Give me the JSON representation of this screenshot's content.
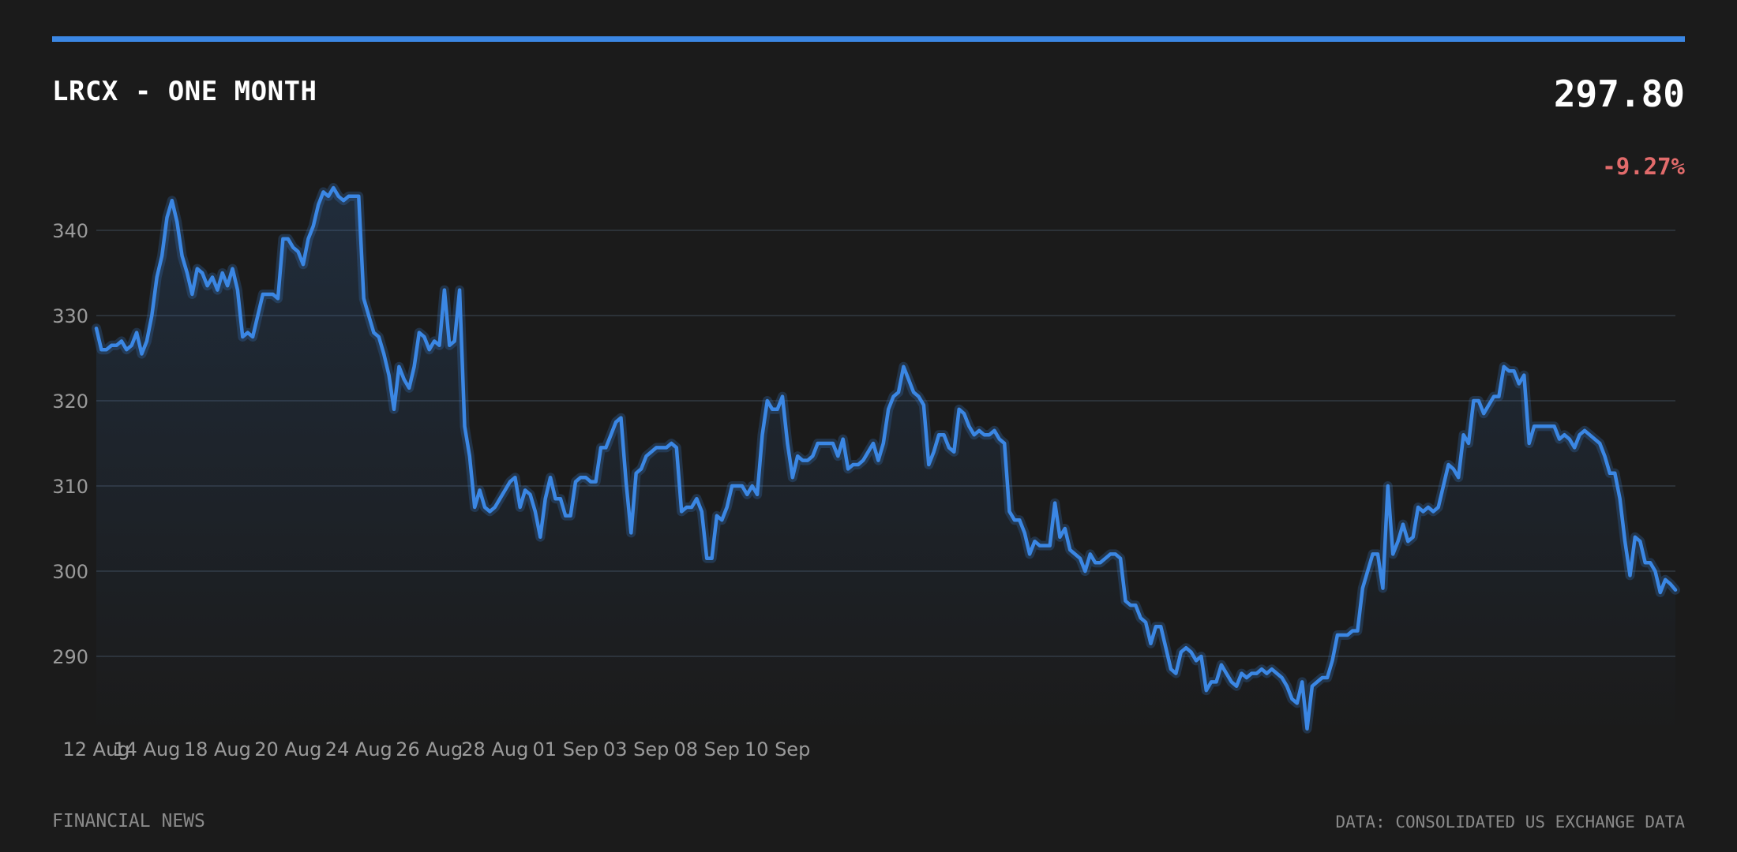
{
  "header": {
    "title": "LRCX - ONE MONTH",
    "price": "297.80",
    "change": "-9.27%"
  },
  "footer": {
    "source_left": "FINANCIAL NEWS",
    "source_right": "DATA: CONSOLIDATED US EXCHANGE DATA"
  },
  "colors": {
    "background": "#1b1b1b",
    "accent": "#3b87e4",
    "negative": "#e26b6b",
    "grid": "#333a42",
    "tick_text": "#9a9a9a"
  },
  "chart_data": {
    "type": "area",
    "title": "LRCX - ONE MONTH",
    "xlabel": "",
    "ylabel": "",
    "ylim": [
      281,
      350
    ],
    "yticks": [
      290,
      300,
      310,
      320,
      330,
      340
    ],
    "grid": true,
    "legend": "none",
    "x_tick_labels": [
      "12 Aug",
      "14 Aug",
      "18 Aug",
      "20 Aug",
      "24 Aug",
      "26 Aug",
      "28 Aug",
      "01 Sep",
      "03 Sep",
      "08 Sep",
      "10 Sep"
    ],
    "x_tick_positions": [
      0,
      10,
      24,
      38,
      52,
      66,
      79,
      93,
      107,
      121,
      135
    ],
    "series": [
      {
        "values": [
          328.5,
          326.0,
          326.0,
          326.5,
          326.5,
          327.0,
          326.0,
          326.5,
          328.0,
          325.5,
          327.0,
          330.0,
          334.5,
          337.0,
          341.5,
          343.5,
          341.0,
          337.0,
          335.0,
          332.5,
          335.5,
          335.0,
          333.5,
          334.5,
          333.0,
          335.0,
          333.5,
          335.5,
          333.0,
          327.5,
          328.0,
          327.5,
          330.0,
          332.5,
          332.5,
          332.5,
          332.0,
          339.0,
          339.0,
          338.0,
          337.5,
          336.0,
          339.0,
          340.5,
          343.0,
          344.5,
          344.0,
          345.0,
          344.0,
          343.5,
          344.0,
          344.0,
          344.0,
          332.0,
          330.0,
          328.0,
          327.5,
          325.5,
          323.0,
          319.0,
          324.0,
          322.5,
          321.5,
          324.0,
          328.0,
          327.5,
          326.0,
          327.0,
          326.5,
          333.0,
          326.5,
          327.0,
          333.0,
          317.0,
          313.5,
          307.5,
          309.5,
          307.5,
          307.0,
          307.5,
          308.5,
          309.5,
          310.5,
          311.0,
          307.5,
          309.5,
          309.0,
          307.0,
          304.0,
          308.5,
          311.0,
          308.5,
          308.5,
          306.5,
          306.5,
          310.5,
          311.0,
          311.0,
          310.5,
          310.5,
          314.5,
          314.5,
          316.0,
          317.5,
          318.0,
          310.5,
          304.5,
          311.5,
          312.0,
          313.5,
          314.0,
          314.5,
          314.5,
          314.5,
          315.0,
          314.5,
          307.0,
          307.5,
          307.5,
          308.5,
          307.0,
          301.5,
          301.5,
          306.5,
          306.0,
          307.5,
          310.0,
          310.0,
          310.0,
          309.0,
          310.0,
          309.0,
          316.0,
          320.0,
          319.0,
          319.0,
          320.5,
          315.0,
          311.0,
          313.5,
          313.0,
          313.0,
          313.5,
          315.0,
          315.0,
          315.0,
          315.0,
          313.5,
          315.5,
          312.0,
          312.5,
          312.5,
          313.0,
          314.0,
          315.0,
          313.0,
          315.0,
          319.0,
          320.5,
          321.0,
          324.0,
          322.5,
          321.0,
          320.5,
          319.5,
          312.5,
          314.0,
          316.0,
          316.0,
          314.5,
          314.0,
          319.0,
          318.5,
          317.0,
          316.0,
          316.5,
          316.0,
          316.0,
          316.5,
          315.5,
          315.0,
          307.0,
          306.0,
          306.0,
          304.5,
          302.0,
          303.5,
          303.0,
          303.0,
          303.0,
          308.0,
          304.0,
          305.0,
          302.5,
          302.0,
          301.5,
          300.0,
          302.0,
          301.0,
          301.0,
          301.5,
          302.0,
          302.0,
          301.5,
          296.5,
          296.0,
          296.0,
          294.5,
          294.0,
          291.5,
          293.5,
          293.5,
          291.0,
          288.5,
          288.0,
          290.5,
          291.0,
          290.5,
          289.5,
          290.0,
          286.0,
          287.0,
          287.0,
          289.0,
          288.0,
          287.0,
          286.5,
          288.0,
          287.5,
          288.0,
          288.0,
          288.5,
          288.0,
          288.5,
          288.0,
          287.5,
          286.5,
          285.0,
          284.5,
          287.0,
          281.5,
          286.5,
          287.0,
          287.5,
          287.5,
          289.5,
          292.5,
          292.5,
          292.5,
          293.0,
          293.0,
          298.0,
          300.0,
          302.0,
          302.0,
          298.0,
          310.0,
          302.0,
          303.5,
          305.5,
          303.5,
          304.0,
          307.5,
          307.0,
          307.5,
          307.0,
          307.5,
          310.0,
          312.5,
          312.0,
          311.0,
          316.0,
          315.0,
          320.0,
          320.0,
          318.5,
          319.5,
          320.5,
          320.5,
          324.0,
          323.5,
          323.5,
          322.0,
          323.0,
          315.0,
          317.0,
          317.0,
          317.0,
          317.0,
          317.0,
          315.5,
          316.0,
          315.5,
          314.5,
          316.0,
          316.5,
          316.0,
          315.5,
          315.0,
          313.5,
          311.5,
          311.5,
          308.5,
          303.5,
          299.5,
          304.0,
          303.5,
          301.0,
          301.0,
          300.0,
          297.5,
          299.0,
          298.5,
          297.8
        ]
      }
    ]
  }
}
